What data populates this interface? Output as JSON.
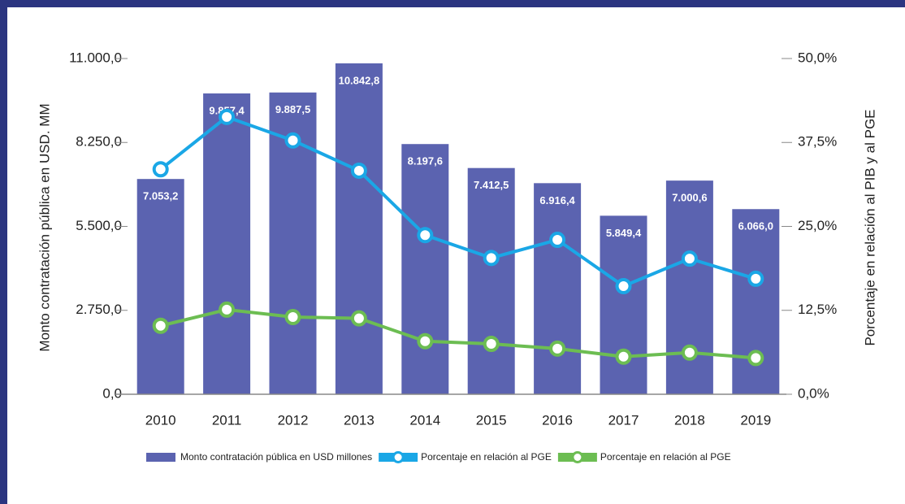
{
  "chart_data": {
    "type": "bar",
    "categories": [
      "2010",
      "2011",
      "2012",
      "2013",
      "2014",
      "2015",
      "2016",
      "2017",
      "2018",
      "2019"
    ],
    "ylabel": "Monto contratación pública en USD. MM",
    "y2label": "Porcentaje en relación al PIB y al PGE",
    "ylim": [
      0,
      11000
    ],
    "yticks": [
      {
        "value": 0,
        "label": "0,0"
      },
      {
        "value": 2750,
        "label": "2.750,0"
      },
      {
        "value": 5500,
        "label": "5.500,0"
      },
      {
        "value": 8250,
        "label": "8.250,0"
      },
      {
        "value": 11000,
        "label": "11.000,0"
      }
    ],
    "y2lim": [
      0,
      50
    ],
    "y2ticks": [
      {
        "value": 0,
        "label": "0,0%"
      },
      {
        "value": 12.5,
        "label": "12,5%"
      },
      {
        "value": 25,
        "label": "25,0%"
      },
      {
        "value": 37.5,
        "label": "37,5%"
      },
      {
        "value": 50,
        "label": "50,0%"
      }
    ],
    "series": [
      {
        "name": "Monto contratación pública en USD millones",
        "type": "bar",
        "color": "#5b63b0",
        "values": [
          7053.2,
          9857.4,
          9887.5,
          10842.8,
          8197.6,
          7412.5,
          6916.4,
          5849.4,
          7000.6,
          6066.0
        ],
        "value_labels": [
          "7.053,2",
          "9.857,4",
          "9.887,5",
          "10.842,8",
          "8.197,6",
          "7.412,5",
          "6.916,4",
          "5.849,4",
          "7.000,6",
          "6.066,0"
        ]
      },
      {
        "name": "Porcentaje en relación al PGE",
        "type": "line",
        "axis": "y2",
        "color": "#1aa7e6",
        "values": [
          33.5,
          41.3,
          37.8,
          33.3,
          23.7,
          20.3,
          23.0,
          16.1,
          20.2,
          17.2
        ]
      },
      {
        "name": "Porcentaje en relación al PGE",
        "type": "line",
        "axis": "y2",
        "color": "#6cbd52",
        "values": [
          10.2,
          12.6,
          11.5,
          11.3,
          7.9,
          7.5,
          6.8,
          5.6,
          6.2,
          5.4
        ]
      }
    ]
  }
}
